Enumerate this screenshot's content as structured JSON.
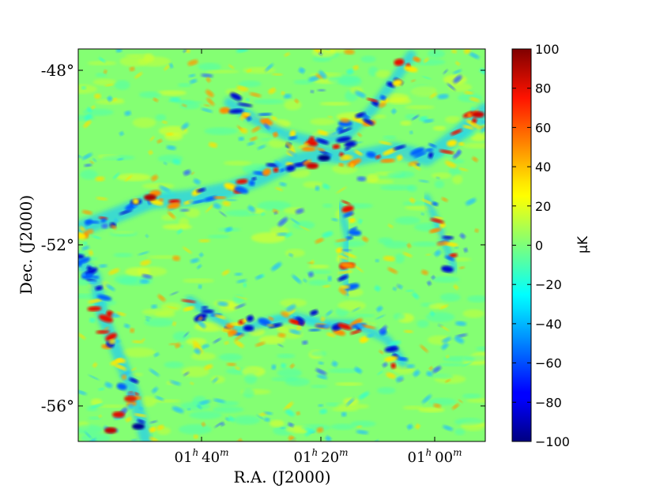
{
  "chart_data": {
    "type": "heatmap",
    "title": "",
    "xlabel": "R.A. (J2000)",
    "ylabel": "Dec. (J2000)",
    "x_ticks": [
      {
        "h": "01",
        "h_unit": "h",
        "m": "40",
        "m_unit": "m"
      },
      {
        "h": "01",
        "h_unit": "h",
        "m": "20",
        "m_unit": "m"
      },
      {
        "h": "01",
        "h_unit": "h",
        "m": "00",
        "m_unit": "m"
      }
    ],
    "y_ticks": [
      "-48°",
      "-52°",
      "-56°"
    ],
    "y_tick_values": [
      -48,
      -52,
      -56
    ],
    "ylim": [
      -56.9,
      -47.1
    ],
    "colorbar": {
      "label": "μK",
      "colormap": "jet",
      "range": [
        -100,
        100
      ],
      "ticks": [
        "100",
        "80",
        "60",
        "40",
        "20",
        "0",
        "−20",
        "−40",
        "−60",
        "−80",
        "−100"
      ],
      "tick_values": [
        100,
        80,
        60,
        40,
        20,
        0,
        -20,
        -40,
        -60,
        -80,
        -100
      ]
    },
    "grid": false
  }
}
